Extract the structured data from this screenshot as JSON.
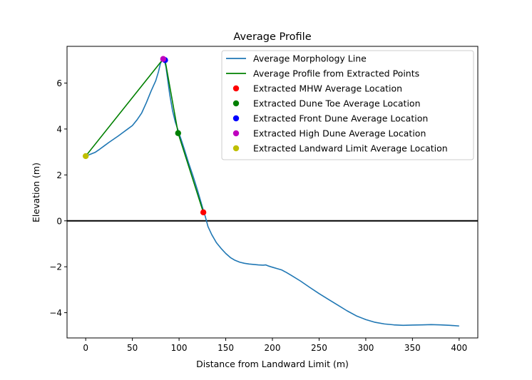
{
  "chart_data": {
    "type": "line",
    "title": "Average Profile",
    "xlabel": "Distance from Landward Limit (m)",
    "ylabel": "Elevation (m)",
    "xlim": [
      -20,
      420
    ],
    "ylim": [
      -5.1,
      7.6
    ],
    "xticks": [
      0,
      50,
      100,
      150,
      200,
      250,
      300,
      350,
      400
    ],
    "yticks": [
      -4,
      -2,
      0,
      2,
      4,
      6
    ],
    "grid": false,
    "legend_position": "top-right",
    "zero_line": {
      "y": 0,
      "color": "#000000"
    },
    "series": [
      {
        "name": "Average Morphology Line",
        "kind": "line",
        "color": "#1f77b4",
        "x": [
          0,
          5,
          10,
          15,
          20,
          25,
          30,
          35,
          40,
          45,
          50,
          55,
          60,
          65,
          70,
          75,
          78,
          80,
          82,
          84,
          86,
          88,
          90,
          93,
          96,
          100,
          105,
          110,
          115,
          120,
          125,
          128,
          131,
          135,
          140,
          145,
          150,
          155,
          160,
          165,
          170,
          175,
          180,
          185,
          190,
          193,
          196,
          200,
          205,
          210,
          215,
          220,
          230,
          240,
          250,
          260,
          270,
          280,
          290,
          300,
          310,
          320,
          330,
          340,
          350,
          360,
          370,
          380,
          390,
          400
        ],
        "y": [
          2.82,
          2.9,
          2.98,
          3.12,
          3.27,
          3.42,
          3.56,
          3.7,
          3.85,
          4.0,
          4.15,
          4.4,
          4.7,
          5.15,
          5.65,
          6.1,
          6.5,
          6.85,
          7.0,
          7.02,
          6.7,
          6.1,
          5.5,
          4.8,
          4.3,
          3.82,
          3.2,
          2.55,
          1.95,
          1.3,
          0.6,
          0.2,
          -0.25,
          -0.6,
          -0.95,
          -1.2,
          -1.42,
          -1.6,
          -1.72,
          -1.8,
          -1.85,
          -1.88,
          -1.9,
          -1.92,
          -1.93,
          -1.92,
          -1.97,
          -2.02,
          -2.08,
          -2.14,
          -2.25,
          -2.37,
          -2.62,
          -2.9,
          -3.17,
          -3.42,
          -3.67,
          -3.92,
          -4.14,
          -4.3,
          -4.42,
          -4.49,
          -4.53,
          -4.55,
          -4.54,
          -4.53,
          -4.52,
          -4.53,
          -4.55,
          -4.58
        ]
      },
      {
        "name": "Average Profile from Extracted Points",
        "kind": "line",
        "color": "#008000",
        "x": [
          0,
          83,
          85,
          99,
          126
        ],
        "y": [
          2.82,
          7.05,
          7.0,
          3.82,
          0.37
        ]
      },
      {
        "name": "Extracted MHW Average Location",
        "kind": "point",
        "color": "#ff0000",
        "x": [
          126
        ],
        "y": [
          0.37
        ]
      },
      {
        "name": "Extracted Dune Toe Average Location",
        "kind": "point",
        "color": "#008000",
        "x": [
          99
        ],
        "y": [
          3.82
        ]
      },
      {
        "name": "Extracted Front Dune Average Location",
        "kind": "point",
        "color": "#0000ff",
        "x": [
          85
        ],
        "y": [
          7.0
        ]
      },
      {
        "name": "Extracted High Dune Average Location",
        "kind": "point",
        "color": "#bf00bf",
        "x": [
          83
        ],
        "y": [
          7.05
        ]
      },
      {
        "name": "Extracted Landward Limit Average Location",
        "kind": "point",
        "color": "#bfbf00",
        "x": [
          0
        ],
        "y": [
          2.82
        ]
      }
    ]
  }
}
